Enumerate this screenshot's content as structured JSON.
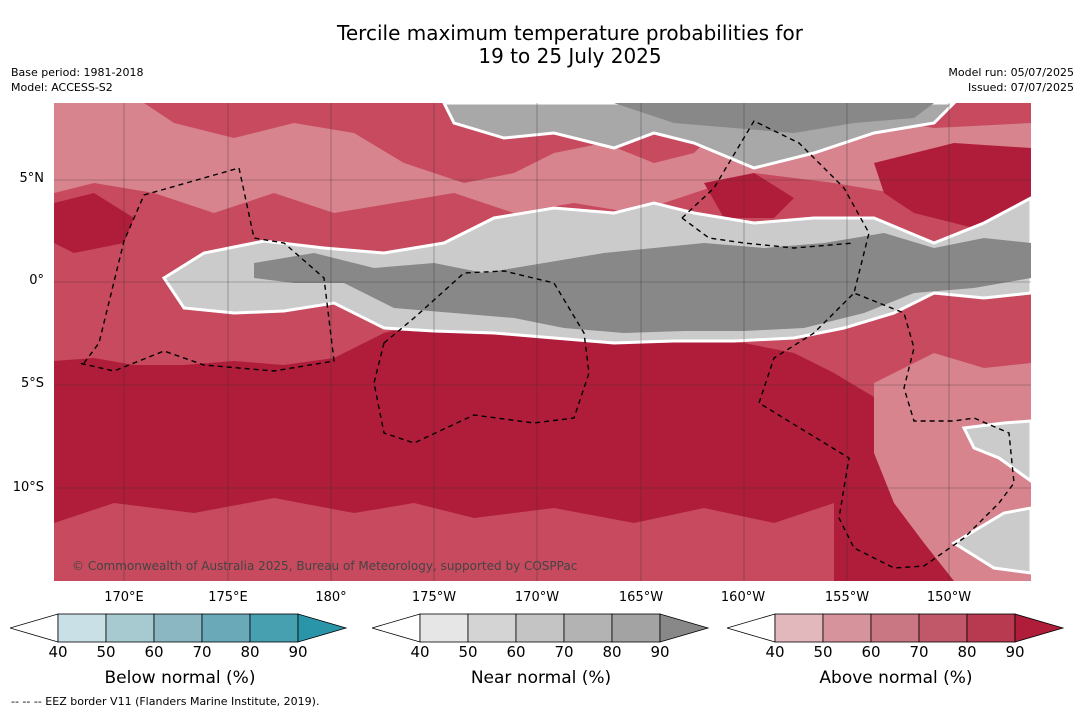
{
  "header": {
    "title_line1": "Tercile maximum temperature probabilities for",
    "title_line2": "19 to 25 July 2025",
    "base_period": "Base period: 1981-2018",
    "model": "Model: ACCESS-S2",
    "model_run": "Model run: 05/07/2025",
    "issued": "Issued: 07/07/2025"
  },
  "map": {
    "lat_labels": [
      "5°N",
      "0°",
      "5°S",
      "10°S"
    ],
    "lon_labels": [
      "170°E",
      "175°E",
      "180°",
      "175°W",
      "170°W",
      "165°W",
      "160°W",
      "155°W",
      "150°W"
    ],
    "copyright": "© Commonwealth of Australia 2025, Bureau of Meteorology, supported by COSPPac",
    "colors": {
      "above_strong": "#b01d3a",
      "above_mid": "#c74a5e",
      "above_light": "#d8848f",
      "near_dark": "#888888",
      "near_mid": "#a8a8a8",
      "near_light": "#cbcbcb"
    }
  },
  "colorbars": {
    "ticks": [
      "40",
      "50",
      "60",
      "70",
      "80",
      "90"
    ],
    "below": {
      "label": "Below normal (%)",
      "colors": [
        "#ffffff",
        "#c8e0e6",
        "#a7c9d0",
        "#8ab7c2",
        "#6aaab8",
        "#47a0b0",
        "#2a95a8"
      ]
    },
    "near": {
      "label": "Near normal (%)",
      "colors": [
        "#ffffff",
        "#e6e6e6",
        "#d4d4d4",
        "#c4c4c4",
        "#b3b3b3",
        "#a3a3a3",
        "#888888"
      ]
    },
    "above": {
      "label": "Above normal (%)",
      "colors": [
        "#ffffff",
        "#e3b8bd",
        "#d6939b",
        "#c87783",
        "#c0586a",
        "#b83a51",
        "#b01d3a"
      ]
    }
  },
  "footnote": "--  --  -- EEZ border V11 (Flanders Marine Institute, 2019)."
}
